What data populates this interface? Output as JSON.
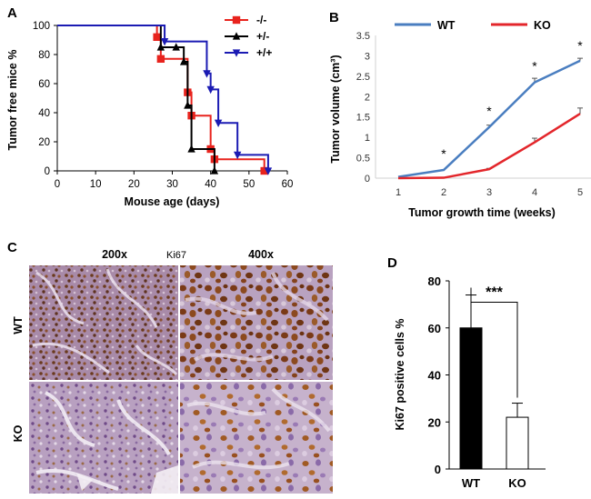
{
  "chart_data": [
    {
      "panel": "A",
      "type": "line",
      "style": "step",
      "xlabel": "Mouse age (days)",
      "ylabel": "Tumor free mice %",
      "xlim": [
        0,
        60
      ],
      "ylim": [
        0,
        100
      ],
      "xticks": [
        0,
        10,
        20,
        30,
        40,
        50,
        60
      ],
      "yticks": [
        0,
        20,
        40,
        60,
        80,
        100
      ],
      "legend_position": "top-right",
      "series": [
        {
          "name": "-/-",
          "color": "#e8231d",
          "marker": "square",
          "steps": [
            [
              0,
              100
            ],
            [
              26,
              92
            ],
            [
              27,
              77
            ],
            [
              34,
              54
            ],
            [
              35,
              38
            ],
            [
              40,
              15
            ],
            [
              41,
              8
            ],
            [
              54,
              0
            ]
          ],
          "points": [
            [
              26,
              92
            ],
            [
              27,
              77
            ],
            [
              34,
              54
            ],
            [
              35,
              38
            ],
            [
              40,
              15
            ],
            [
              41,
              8
            ],
            [
              54,
              0
            ]
          ]
        },
        {
          "name": "+/-",
          "color": "#000000",
          "marker": "triangle-up",
          "steps": [
            [
              0,
              100
            ],
            [
              27,
              85
            ],
            [
              31,
              85
            ],
            [
              33,
              75
            ],
            [
              34,
              45
            ],
            [
              35,
              15
            ],
            [
              41,
              0
            ]
          ],
          "points": [
            [
              27,
              85
            ],
            [
              31,
              85
            ],
            [
              33,
              75
            ],
            [
              34,
              45
            ],
            [
              35,
              15
            ],
            [
              41,
              0
            ]
          ]
        },
        {
          "name": "+/+",
          "color": "#1b1bb3",
          "marker": "triangle-down",
          "steps": [
            [
              0,
              100
            ],
            [
              28,
              89
            ],
            [
              39,
              67
            ],
            [
              40,
              56
            ],
            [
              42,
              33
            ],
            [
              47,
              11
            ],
            [
              55,
              0
            ]
          ],
          "points": [
            [
              28,
              89
            ],
            [
              39,
              67
            ],
            [
              40,
              56
            ],
            [
              42,
              33
            ],
            [
              47,
              11
            ],
            [
              55,
              0
            ]
          ]
        }
      ]
    },
    {
      "panel": "B",
      "type": "line",
      "xlabel": "Tumor growth time (weeks)",
      "ylabel": "Tumor volume (cm³)",
      "x": [
        1,
        2,
        3,
        4,
        5
      ],
      "xlim": [
        0.5,
        5.5
      ],
      "ylim": [
        0,
        3.5
      ],
      "yticks": [
        0,
        0.5,
        1,
        1.5,
        2,
        2.5,
        3,
        3.5
      ],
      "ytick_labels": [
        "0",
        "0.5",
        "1",
        "1.5",
        "2",
        "2.5",
        "3",
        "3.5"
      ],
      "legend_position": "top",
      "annotations": [
        "*",
        "*",
        "*",
        "*"
      ],
      "annotation_x": [
        2,
        3,
        4,
        5
      ],
      "annotation_y": [
        0.6,
        1.65,
        2.75,
        3.25
      ],
      "series": [
        {
          "name": "WT",
          "color": "#4a7ec0",
          "values": [
            0.03,
            0.2,
            1.25,
            2.35,
            2.88
          ],
          "errors": [
            0,
            0,
            0.05,
            0.1,
            0.06
          ]
        },
        {
          "name": "KO",
          "color": "#e3262b",
          "values": [
            0.0,
            0.01,
            0.22,
            0.88,
            1.58
          ],
          "errors": [
            0,
            0,
            0.02,
            0.1,
            0.14
          ]
        }
      ]
    },
    {
      "panel": "D",
      "type": "bar",
      "categories": [
        "WT",
        "KO"
      ],
      "values": [
        60,
        22
      ],
      "errors": [
        14,
        6
      ],
      "colors": [
        "#000000",
        "#ffffff"
      ],
      "ylabel": "Ki67 positive cells %",
      "ylim": [
        0,
        80
      ],
      "yticks": [
        0,
        20,
        40,
        60,
        80
      ],
      "significance": "***"
    }
  ],
  "panel_c": {
    "label": "C",
    "col_headers": [
      "200x",
      "Ki67",
      "400x"
    ],
    "row_labels": [
      "WT",
      "KO"
    ]
  },
  "panel_labels": [
    "A",
    "B",
    "C",
    "D"
  ]
}
